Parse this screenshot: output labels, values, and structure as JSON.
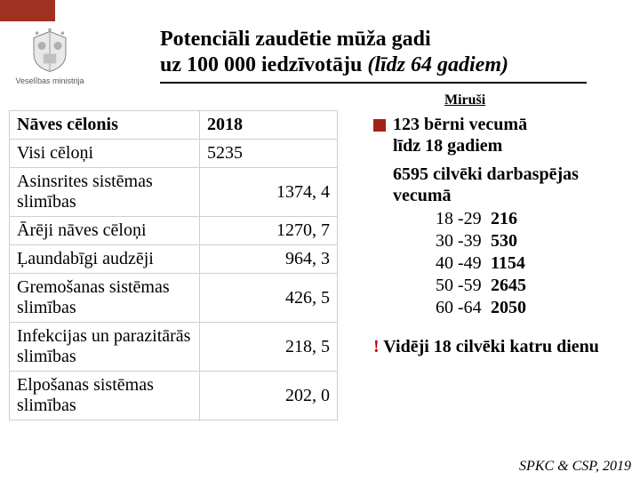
{
  "brand": {
    "ministry_label": "Veselības ministrija",
    "top_bar_color": "#a03020"
  },
  "title": {
    "line1": "Potenciāli zaudētie mūža gadi",
    "line2_plain": "uz 100 000 iedzīvotāju ",
    "line2_ital": "(līdz 64 gadiem)"
  },
  "mirusi_label": "Miruši",
  "table": {
    "header_cause": "Nāves cēlonis",
    "header_year": "2018",
    "rows": [
      {
        "cause": "Visi cēloņi",
        "value": "5235"
      },
      {
        "cause": "Asinsrites sistēmas slimības",
        "value": "1374, 4"
      },
      {
        "cause": "Ārēji nāves cēloņi",
        "value": "1270, 7"
      },
      {
        "cause": "Ļaundabīgi audzēji",
        "value": "964, 3"
      },
      {
        "cause": "Gremošanas sistēmas slimības",
        "value": "426, 5"
      },
      {
        "cause": "Infekcijas un parazitārās slimības",
        "value": "218, 5"
      },
      {
        "cause": "Elpošanas sistēmas slimības",
        "value": "202, 0"
      }
    ]
  },
  "right": {
    "bullet1_l1": "123 bērni vecumā",
    "bullet1_l2": "līdz 18 gadiem",
    "block2_lead_l1": "6595 cilvēki darbaspējas",
    "block2_lead_l2": "vecumā",
    "ages": [
      {
        "range": "18 -29",
        "count": "216"
      },
      {
        "range": "30 -39",
        "count": "530"
      },
      {
        "range": "40 -49",
        "count": "1154"
      },
      {
        "range": "50 -59",
        "count": "2645"
      },
      {
        "range": "60 -64",
        "count": "2050"
      }
    ],
    "avg_excl": "!",
    "avg_text": " Vidēji 18 cilvēki katru dienu"
  },
  "source": "SPKC & CSP, 2019"
}
